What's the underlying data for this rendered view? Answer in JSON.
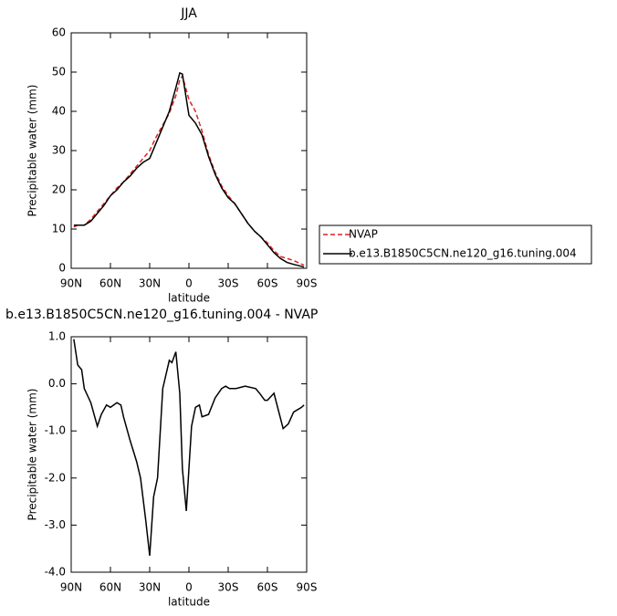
{
  "chart_data": [
    {
      "type": "line",
      "title": "JJA",
      "x_label": "latitude",
      "y_label": "Precipitable water (mm)",
      "x": [
        88,
        85,
        80,
        75,
        70,
        65,
        60,
        55,
        50,
        45,
        40,
        35,
        30,
        25,
        20,
        15,
        10,
        7,
        5,
        0,
        -5,
        -10,
        -15,
        -20,
        -25,
        -30,
        -35,
        -40,
        -45,
        -50,
        -55,
        -60,
        -65,
        -70,
        -75,
        -80,
        -85,
        -88
      ],
      "series": [
        {
          "name": "NVAP",
          "color": "#dd2222",
          "dash": true,
          "values": [
            10.5,
            11,
            11,
            12.5,
            14.5,
            16.5,
            18.5,
            20.5,
            22,
            24,
            26,
            28,
            30,
            33.5,
            36.5,
            39.5,
            44,
            48,
            49,
            43,
            40,
            35,
            29,
            24.5,
            21,
            18.5,
            16.5,
            14,
            11.5,
            9.5,
            8,
            6.5,
            4.5,
            3,
            2.5,
            2,
            1.2,
            0.8
          ]
        },
        {
          "name": "b.e13.B1850C5CN.ne120_g16.tuning.004",
          "color": "#000000",
          "dash": false,
          "values": [
            11,
            11,
            11,
            12,
            14,
            16,
            18.5,
            20,
            22,
            23.5,
            25.5,
            27,
            28,
            32,
            36,
            40,
            46,
            49.8,
            49.5,
            39,
            37,
            34,
            28.5,
            24,
            20.5,
            18,
            16.5,
            14,
            11.5,
            9.5,
            8,
            6,
            4,
            2.5,
            1.5,
            1,
            0.6,
            0.3
          ]
        }
      ],
      "xlim": [
        90,
        -90
      ],
      "ylim": [
        0,
        60
      ],
      "xticks": [
        {
          "value": 90,
          "label": "90N"
        },
        {
          "value": 60,
          "label": "60N"
        },
        {
          "value": 30,
          "label": "30N"
        },
        0,
        {
          "value": -30,
          "label": "30S"
        },
        {
          "value": -60,
          "label": "60S"
        },
        {
          "value": -90,
          "label": "90S"
        }
      ],
      "yticks": [
        0,
        10,
        20,
        30,
        40,
        50,
        60
      ],
      "legend": "right"
    },
    {
      "type": "line",
      "title": "b.e13.B1850C5CN.ne120_g16.tuning.004 - NVAP",
      "x_label": "latitude",
      "y_label": "Precipitable water (mm)",
      "x": [
        88,
        85,
        82,
        80,
        75,
        70,
        67,
        63,
        60,
        55,
        52,
        50,
        45,
        40,
        37,
        33,
        30,
        27,
        24,
        20,
        15,
        13,
        10,
        7,
        5,
        2,
        -2,
        -5,
        -8,
        -10,
        -15,
        -20,
        -25,
        -28,
        -31,
        -36,
        -43,
        -51,
        -54,
        -58,
        -60,
        -65,
        -72,
        -76,
        -80,
        -86,
        -88
      ],
      "series": [
        {
          "name": "b.e13.B1850C5CN.ne120_g16.tuning.004 - NVAP",
          "color": "#000000",
          "dash": false,
          "values": [
            0.95,
            0.4,
            0.3,
            -0.1,
            -0.4,
            -0.9,
            -0.65,
            -0.45,
            -0.5,
            -0.4,
            -0.45,
            -0.7,
            -1.2,
            -1.65,
            -2.0,
            -2.9,
            -3.65,
            -2.4,
            -2.0,
            -0.1,
            0.5,
            0.45,
            0.68,
            -0.2,
            -1.8,
            -2.7,
            -0.9,
            -0.5,
            -0.45,
            -0.7,
            -0.65,
            -0.3,
            -0.1,
            -0.05,
            -0.1,
            -0.1,
            -0.05,
            -0.1,
            -0.2,
            -0.35,
            -0.35,
            -0.2,
            -0.95,
            -0.85,
            -0.6,
            -0.5,
            -0.45
          ]
        }
      ],
      "xlim": [
        90,
        -90
      ],
      "ylim": [
        -4,
        1
      ],
      "xticks": [
        {
          "value": 90,
          "label": "90N"
        },
        {
          "value": 60,
          "label": "60N"
        },
        {
          "value": 30,
          "label": "30N"
        },
        0,
        {
          "value": -30,
          "label": "30S"
        },
        {
          "value": -60,
          "label": "60S"
        },
        {
          "value": -90,
          "label": "90S"
        }
      ],
      "yticks": [
        {
          "value": -4,
          "label": "-4.0"
        },
        {
          "value": -3,
          "label": "-3.0"
        },
        {
          "value": -2,
          "label": "-2.0"
        },
        {
          "value": -1,
          "label": "-1.0"
        },
        {
          "value": 0,
          "label": "0.0"
        },
        {
          "value": 1,
          "label": "1.0"
        }
      ]
    }
  ]
}
